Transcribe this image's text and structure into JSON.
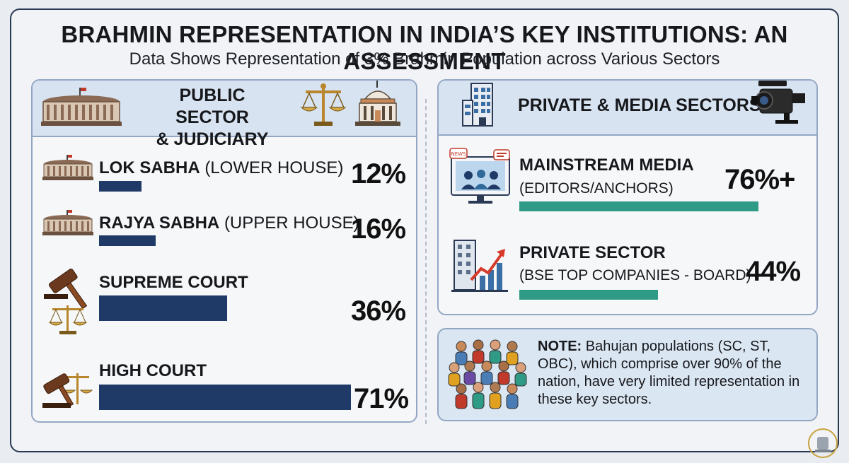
{
  "title": "BRAHMIN REPRESENTATION IN INDIA’S KEY INSTITUTIONS: AN ASSESSMENT",
  "subtitle": "Data Shows Representation of 3% Brahmin Population across Various Sectors",
  "left_panel": {
    "heading_line1": "PUBLIC SECTOR",
    "heading_line2": "& JUDICIARY",
    "icons": [
      "parliament-icon",
      "scales-icon",
      "courthouse-icon"
    ]
  },
  "right_panel": {
    "heading": "PRIVATE & MEDIA SECTORS",
    "icons": [
      "office-building-icon",
      "video-camera-icon"
    ]
  },
  "note": {
    "label": "NOTE:",
    "text": "Bahujan populations (SC, ST, OBC), which comprise over 90% of the nation, have very limited representation in these key sectors.",
    "icon": "crowd-icon"
  },
  "colors": {
    "bar_navy": "#1f3a66",
    "bar_teal": "#2f9a85",
    "panel_border": "#93a7c4",
    "panel_head": "#d8e3f1"
  },
  "chart_data": [
    {
      "type": "bar",
      "orientation": "horizontal",
      "categories": [
        {
          "name": "LOK SABHA",
          "qualifier": "(LOWER HOUSE)",
          "icon": "parliament-icon"
        },
        {
          "name": "RAJYA SABHA",
          "qualifier": "(UPPER HOUSE)",
          "icon": "parliament-icon"
        },
        {
          "name": "SUPREME COURT",
          "qualifier": "",
          "icon": "gavel-scales-icon"
        },
        {
          "name": "HIGH COURT",
          "qualifier": "",
          "icon": "gavel-scales-icon"
        }
      ],
      "values": [
        12,
        16,
        36,
        71
      ],
      "labels": [
        "12%",
        "16%",
        "36%",
        "71%"
      ],
      "unit": "%",
      "xlim": [
        0,
        71
      ]
    },
    {
      "type": "bar",
      "orientation": "horizontal",
      "categories": [
        {
          "name": "MAINSTREAM MEDIA",
          "qualifier": "(EDITORS/ANCHORS)",
          "icon": "media-screen-icon"
        },
        {
          "name": "PRIVATE SECTOR",
          "qualifier": "(BSE TOP COMPANIES - BOARD)",
          "icon": "growth-chart-icon"
        }
      ],
      "values": [
        76,
        44
      ],
      "labels": [
        "76%+",
        "44%"
      ],
      "unit": "%",
      "xlim": [
        0,
        76
      ]
    }
  ]
}
